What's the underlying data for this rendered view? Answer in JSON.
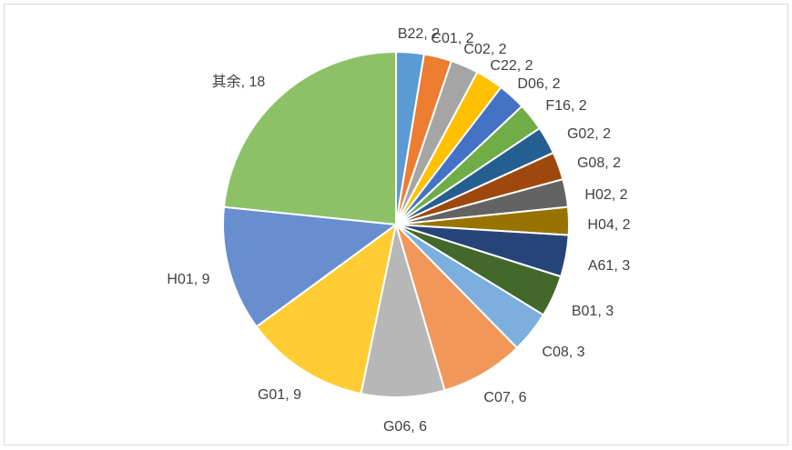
{
  "chart_data": {
    "type": "pie",
    "title": "",
    "label_separator": ", ",
    "slices": [
      {
        "label": "B22",
        "value": 2,
        "color": "#5B9BD5"
      },
      {
        "label": "C01",
        "value": 2,
        "color": "#ED7D31"
      },
      {
        "label": "C02",
        "value": 2,
        "color": "#A5A5A5"
      },
      {
        "label": "C22",
        "value": 2,
        "color": "#FFC000"
      },
      {
        "label": "D06",
        "value": 2,
        "color": "#4472C4"
      },
      {
        "label": "F16",
        "value": 2,
        "color": "#70AD47"
      },
      {
        "label": "G02",
        "value": 2,
        "color": "#255E91"
      },
      {
        "label": "G08",
        "value": 2,
        "color": "#9E480E"
      },
      {
        "label": "H02",
        "value": 2,
        "color": "#636363"
      },
      {
        "label": "H04",
        "value": 2,
        "color": "#997300"
      },
      {
        "label": "A61",
        "value": 3,
        "color": "#264478"
      },
      {
        "label": "B01",
        "value": 3,
        "color": "#43682B"
      },
      {
        "label": "C08",
        "value": 3,
        "color": "#7CAFDD"
      },
      {
        "label": "C07",
        "value": 6,
        "color": "#F1975A"
      },
      {
        "label": "G06",
        "value": 6,
        "color": "#B7B7B7"
      },
      {
        "label": "G01",
        "value": 9,
        "color": "#FFCD33"
      },
      {
        "label": "H01",
        "value": 9,
        "color": "#698ED0"
      },
      {
        "label": "其余",
        "value": 18,
        "color": "#8CC168"
      }
    ]
  }
}
